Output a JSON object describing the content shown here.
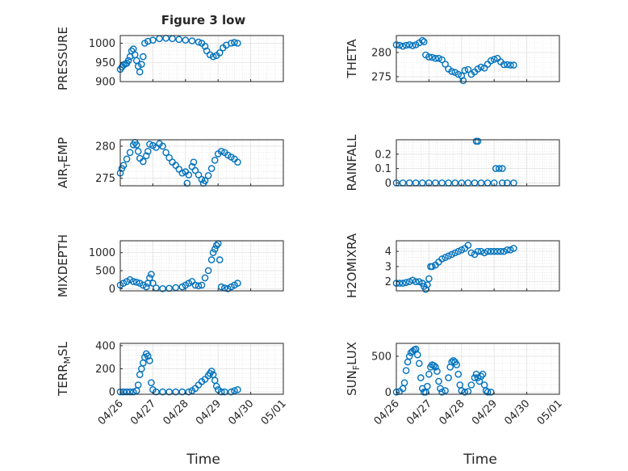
{
  "figure": {
    "title": "Figure 3 low",
    "xlabel": "Time",
    "marker_color": "#0072BD"
  },
  "chart_data": [
    {
      "type": "scatter",
      "name": "pressure",
      "ylabel": "PRESSURE",
      "ylim": [
        900,
        1020
      ],
      "yticks": [
        900,
        950,
        1000
      ],
      "x": [
        "04/26",
        "04/27",
        "04/28",
        "04/29",
        "04/30",
        "05/01"
      ],
      "points": [
        [
          0.0,
          932
        ],
        [
          0.05,
          938
        ],
        [
          0.1,
          943
        ],
        [
          0.15,
          946
        ],
        [
          0.2,
          948
        ],
        [
          0.25,
          955
        ],
        [
          0.3,
          965
        ],
        [
          0.35,
          980
        ],
        [
          0.4,
          985
        ],
        [
          0.45,
          970
        ],
        [
          0.5,
          955
        ],
        [
          0.55,
          940
        ],
        [
          0.6,
          925
        ],
        [
          0.65,
          945
        ],
        [
          0.7,
          965
        ],
        [
          0.75,
          1000
        ],
        [
          0.85,
          1005
        ],
        [
          1.0,
          1008
        ],
        [
          1.2,
          1012
        ],
        [
          1.4,
          1013
        ],
        [
          1.6,
          1012
        ],
        [
          1.8,
          1010
        ],
        [
          2.0,
          1008
        ],
        [
          2.2,
          1006
        ],
        [
          2.4,
          1003
        ],
        [
          2.5,
          1000
        ],
        [
          2.6,
          992
        ],
        [
          2.65,
          980
        ],
        [
          2.75,
          970
        ],
        [
          2.85,
          965
        ],
        [
          2.95,
          968
        ],
        [
          3.05,
          975
        ],
        [
          3.15,
          988
        ],
        [
          3.25,
          995
        ],
        [
          3.4,
          1000
        ],
        [
          3.5,
          1002
        ],
        [
          3.6,
          1000
        ]
      ]
    },
    {
      "type": "scatter",
      "name": "theta",
      "ylabel": "THETA",
      "ylim": [
        274,
        283.5
      ],
      "yticks": [
        275,
        280
      ],
      "x": [
        "04/26",
        "04/27",
        "04/28",
        "04/29",
        "04/30",
        "05/01"
      ],
      "points": [
        [
          0.0,
          281.6
        ],
        [
          0.1,
          281.5
        ],
        [
          0.2,
          281.3
        ],
        [
          0.3,
          281.5
        ],
        [
          0.4,
          281.6
        ],
        [
          0.5,
          281.4
        ],
        [
          0.6,
          281.6
        ],
        [
          0.7,
          282.0
        ],
        [
          0.8,
          282.5
        ],
        [
          0.85,
          282.2
        ],
        [
          0.9,
          279.5
        ],
        [
          1.0,
          279.1
        ],
        [
          1.1,
          279.0
        ],
        [
          1.2,
          278.8
        ],
        [
          1.3,
          278.8
        ],
        [
          1.4,
          278.5
        ],
        [
          1.5,
          277.6
        ],
        [
          1.6,
          276.6
        ],
        [
          1.7,
          276.1
        ],
        [
          1.8,
          275.9
        ],
        [
          1.9,
          275.5
        ],
        [
          2.0,
          275.2
        ],
        [
          2.05,
          274.2
        ],
        [
          2.1,
          276.3
        ],
        [
          2.2,
          276.5
        ],
        [
          2.3,
          275.5
        ],
        [
          2.4,
          276.0
        ],
        [
          2.5,
          276.6
        ],
        [
          2.6,
          277.0
        ],
        [
          2.7,
          276.8
        ],
        [
          2.8,
          277.6
        ],
        [
          2.9,
          278.3
        ],
        [
          3.0,
          278.6
        ],
        [
          3.1,
          278.8
        ],
        [
          3.2,
          278.1
        ],
        [
          3.3,
          277.5
        ],
        [
          3.4,
          277.5
        ],
        [
          3.5,
          277.4
        ],
        [
          3.6,
          277.4
        ]
      ]
    },
    {
      "type": "scatter",
      "name": "air_temp",
      "ylabel": "AIR",
      "ylabel_sub": "T",
      "ylabel_tail": "EMP",
      "ylim": [
        273.8,
        281
      ],
      "yticks": [
        275,
        280
      ],
      "x": [
        "04/26",
        "04/27",
        "04/28",
        "04/29",
        "04/30",
        "05/01"
      ],
      "points": [
        [
          0.0,
          275.8
        ],
        [
          0.05,
          276.5
        ],
        [
          0.1,
          277.0
        ],
        [
          0.2,
          278.0
        ],
        [
          0.3,
          279.0
        ],
        [
          0.4,
          280.2
        ],
        [
          0.45,
          280.6
        ],
        [
          0.5,
          280.2
        ],
        [
          0.55,
          279.2
        ],
        [
          0.6,
          278.1
        ],
        [
          0.7,
          277.6
        ],
        [
          0.8,
          278.5
        ],
        [
          0.85,
          279.2
        ],
        [
          0.9,
          280.3
        ],
        [
          1.0,
          280.1
        ],
        [
          1.1,
          279.8
        ],
        [
          1.2,
          280.4
        ],
        [
          1.3,
          280.0
        ],
        [
          1.4,
          279.0
        ],
        [
          1.5,
          278.2
        ],
        [
          1.6,
          277.5
        ],
        [
          1.7,
          277.0
        ],
        [
          1.8,
          276.4
        ],
        [
          1.9,
          275.8
        ],
        [
          2.0,
          276.0
        ],
        [
          2.05,
          274.2
        ],
        [
          2.1,
          275.5
        ],
        [
          2.2,
          276.8
        ],
        [
          2.25,
          277.5
        ],
        [
          2.3,
          276.2
        ],
        [
          2.4,
          275.5
        ],
        [
          2.5,
          274.8
        ],
        [
          2.55,
          274.2
        ],
        [
          2.6,
          274.6
        ],
        [
          2.7,
          275.4
        ],
        [
          2.8,
          276.5
        ],
        [
          2.9,
          277.8
        ],
        [
          3.0,
          278.8
        ],
        [
          3.1,
          279.2
        ],
        [
          3.2,
          279.0
        ],
        [
          3.3,
          278.6
        ],
        [
          3.4,
          278.3
        ],
        [
          3.5,
          278.0
        ],
        [
          3.6,
          277.5
        ]
      ]
    },
    {
      "type": "scatter",
      "name": "rainfall",
      "ylabel": "RAINFALL",
      "ylim": [
        -0.02,
        0.3
      ],
      "yticks": [
        0,
        0.1,
        0.2
      ],
      "yticklabels": [
        "0",
        "0.1",
        "0.2"
      ],
      "x": [
        "04/26",
        "04/27",
        "04/28",
        "04/29",
        "04/30",
        "05/01"
      ],
      "points": [
        [
          0.0,
          0
        ],
        [
          0.2,
          0
        ],
        [
          0.4,
          0
        ],
        [
          0.6,
          0
        ],
        [
          0.8,
          0
        ],
        [
          1.0,
          0
        ],
        [
          1.2,
          0
        ],
        [
          1.4,
          0
        ],
        [
          1.6,
          0
        ],
        [
          1.8,
          0
        ],
        [
          2.0,
          0
        ],
        [
          2.2,
          0
        ],
        [
          2.4,
          0
        ],
        [
          2.45,
          0.29
        ],
        [
          2.5,
          0.29
        ],
        [
          2.6,
          0
        ],
        [
          2.8,
          0
        ],
        [
          3.0,
          0
        ],
        [
          3.05,
          0.1
        ],
        [
          3.15,
          0.1
        ],
        [
          3.25,
          0.1
        ],
        [
          3.25,
          0
        ],
        [
          3.4,
          0
        ],
        [
          3.6,
          0
        ]
      ]
    },
    {
      "type": "scatter",
      "name": "mixdepth",
      "ylabel": "MIXDEPTH",
      "ylim": [
        -60,
        1330
      ],
      "yticks": [
        0,
        500,
        1000
      ],
      "x": [
        "04/26",
        "04/27",
        "04/28",
        "04/29",
        "04/30",
        "05/01"
      ],
      "points": [
        [
          0.0,
          100
        ],
        [
          0.1,
          150
        ],
        [
          0.2,
          200
        ],
        [
          0.3,
          250
        ],
        [
          0.4,
          200
        ],
        [
          0.5,
          180
        ],
        [
          0.6,
          150
        ],
        [
          0.7,
          100
        ],
        [
          0.8,
          50
        ],
        [
          0.85,
          150
        ],
        [
          0.9,
          300
        ],
        [
          0.95,
          400
        ],
        [
          1.0,
          150
        ],
        [
          1.1,
          20
        ],
        [
          1.3,
          0
        ],
        [
          1.5,
          10
        ],
        [
          1.7,
          30
        ],
        [
          1.9,
          50
        ],
        [
          2.0,
          100
        ],
        [
          2.1,
          150
        ],
        [
          2.2,
          200
        ],
        [
          2.3,
          100
        ],
        [
          2.4,
          80
        ],
        [
          2.5,
          100
        ],
        [
          2.6,
          300
        ],
        [
          2.7,
          500
        ],
        [
          2.8,
          800
        ],
        [
          2.85,
          1000
        ],
        [
          2.9,
          1100
        ],
        [
          2.95,
          1200
        ],
        [
          3.0,
          1250
        ],
        [
          3.05,
          800
        ],
        [
          3.1,
          50
        ],
        [
          3.2,
          20
        ],
        [
          3.3,
          0
        ],
        [
          3.4,
          50
        ],
        [
          3.5,
          100
        ],
        [
          3.6,
          150
        ]
      ]
    },
    {
      "type": "scatter",
      "name": "h2omixra",
      "ylabel": "H2OMIXRA",
      "ylim": [
        1.4,
        4.7
      ],
      "yticks": [
        2,
        3,
        4
      ],
      "x": [
        "04/26",
        "04/27",
        "04/28",
        "04/29",
        "04/30",
        "05/01"
      ],
      "points": [
        [
          0.0,
          1.9
        ],
        [
          0.1,
          1.9
        ],
        [
          0.2,
          1.9
        ],
        [
          0.3,
          1.95
        ],
        [
          0.4,
          2.0
        ],
        [
          0.5,
          2.1
        ],
        [
          0.6,
          2.0
        ],
        [
          0.7,
          2.0
        ],
        [
          0.8,
          1.9
        ],
        [
          0.85,
          1.7
        ],
        [
          0.9,
          1.5
        ],
        [
          0.95,
          1.8
        ],
        [
          1.0,
          2.2
        ],
        [
          1.05,
          3.0
        ],
        [
          1.1,
          3.0
        ],
        [
          1.2,
          3.1
        ],
        [
          1.3,
          3.3
        ],
        [
          1.4,
          3.5
        ],
        [
          1.5,
          3.6
        ],
        [
          1.6,
          3.7
        ],
        [
          1.7,
          3.8
        ],
        [
          1.8,
          3.9
        ],
        [
          1.9,
          4.0
        ],
        [
          2.0,
          4.1
        ],
        [
          2.1,
          4.2
        ],
        [
          2.2,
          4.4
        ],
        [
          2.3,
          3.9
        ],
        [
          2.4,
          3.8
        ],
        [
          2.5,
          4.0
        ],
        [
          2.6,
          4.0
        ],
        [
          2.7,
          3.9
        ],
        [
          2.8,
          4.0
        ],
        [
          2.9,
          4.0
        ],
        [
          3.0,
          4.0
        ],
        [
          3.1,
          4.0
        ],
        [
          3.2,
          4.0
        ],
        [
          3.3,
          4.0
        ],
        [
          3.4,
          4.1
        ],
        [
          3.5,
          4.1
        ],
        [
          3.6,
          4.2
        ]
      ]
    },
    {
      "type": "scatter",
      "name": "terr_msl",
      "ylabel": "TERR",
      "ylabel_sub": "M",
      "ylabel_tail": "SL",
      "ylim": [
        -20,
        420
      ],
      "yticks": [
        0,
        200,
        400
      ],
      "x": [
        "04/26",
        "04/27",
        "04/28",
        "04/29",
        "04/30",
        "05/01"
      ],
      "points": [
        [
          0.0,
          0
        ],
        [
          0.1,
          0
        ],
        [
          0.2,
          0
        ],
        [
          0.3,
          0
        ],
        [
          0.4,
          0
        ],
        [
          0.5,
          10
        ],
        [
          0.55,
          60
        ],
        [
          0.6,
          150
        ],
        [
          0.65,
          200
        ],
        [
          0.7,
          250
        ],
        [
          0.75,
          300
        ],
        [
          0.8,
          330
        ],
        [
          0.85,
          310
        ],
        [
          0.9,
          270
        ],
        [
          0.95,
          80
        ],
        [
          1.0,
          20
        ],
        [
          1.1,
          0
        ],
        [
          1.3,
          0
        ],
        [
          1.5,
          0
        ],
        [
          1.7,
          0
        ],
        [
          1.9,
          0
        ],
        [
          2.1,
          0
        ],
        [
          2.2,
          10
        ],
        [
          2.3,
          30
        ],
        [
          2.4,
          60
        ],
        [
          2.5,
          90
        ],
        [
          2.6,
          110
        ],
        [
          2.7,
          140
        ],
        [
          2.75,
          160
        ],
        [
          2.8,
          180
        ],
        [
          2.85,
          150
        ],
        [
          2.9,
          100
        ],
        [
          2.95,
          50
        ],
        [
          3.0,
          20
        ],
        [
          3.1,
          0
        ],
        [
          3.2,
          0
        ],
        [
          3.4,
          0
        ],
        [
          3.5,
          10
        ],
        [
          3.6,
          20
        ]
      ]
    },
    {
      "type": "scatter",
      "name": "sun_flux",
      "ylabel": "SUN",
      "ylabel_sub": "F",
      "ylabel_tail": "LUX",
      "ylim": [
        -30,
        680
      ],
      "yticks": [
        0,
        500
      ],
      "x": [
        "04/26",
        "04/27",
        "04/28",
        "04/29",
        "04/30",
        "05/01"
      ],
      "points": [
        [
          0.0,
          0
        ],
        [
          0.1,
          10
        ],
        [
          0.2,
          50
        ],
        [
          0.25,
          130
        ],
        [
          0.3,
          300
        ],
        [
          0.35,
          420
        ],
        [
          0.4,
          500
        ],
        [
          0.45,
          550
        ],
        [
          0.5,
          570
        ],
        [
          0.55,
          590
        ],
        [
          0.6,
          600
        ],
        [
          0.65,
          520
        ],
        [
          0.7,
          400
        ],
        [
          0.75,
          200
        ],
        [
          0.8,
          50
        ],
        [
          0.85,
          0
        ],
        [
          0.9,
          0
        ],
        [
          0.95,
          80
        ],
        [
          1.0,
          250
        ],
        [
          1.05,
          350
        ],
        [
          1.1,
          380
        ],
        [
          1.15,
          370
        ],
        [
          1.2,
          350
        ],
        [
          1.25,
          290
        ],
        [
          1.3,
          150
        ],
        [
          1.35,
          50
        ],
        [
          1.4,
          0
        ],
        [
          1.5,
          20
        ],
        [
          1.6,
          200
        ],
        [
          1.65,
          350
        ],
        [
          1.7,
          420
        ],
        [
          1.75,
          440
        ],
        [
          1.8,
          420
        ],
        [
          1.85,
          380
        ],
        [
          1.9,
          250
        ],
        [
          1.95,
          100
        ],
        [
          2.0,
          20
        ],
        [
          2.1,
          0
        ],
        [
          2.2,
          10
        ],
        [
          2.3,
          100
        ],
        [
          2.4,
          200
        ],
        [
          2.45,
          250
        ],
        [
          2.5,
          200
        ],
        [
          2.55,
          150
        ],
        [
          2.6,
          220
        ],
        [
          2.65,
          250
        ],
        [
          2.7,
          100
        ],
        [
          2.75,
          20
        ],
        [
          2.8,
          0
        ],
        [
          2.9,
          0
        ]
      ]
    }
  ]
}
